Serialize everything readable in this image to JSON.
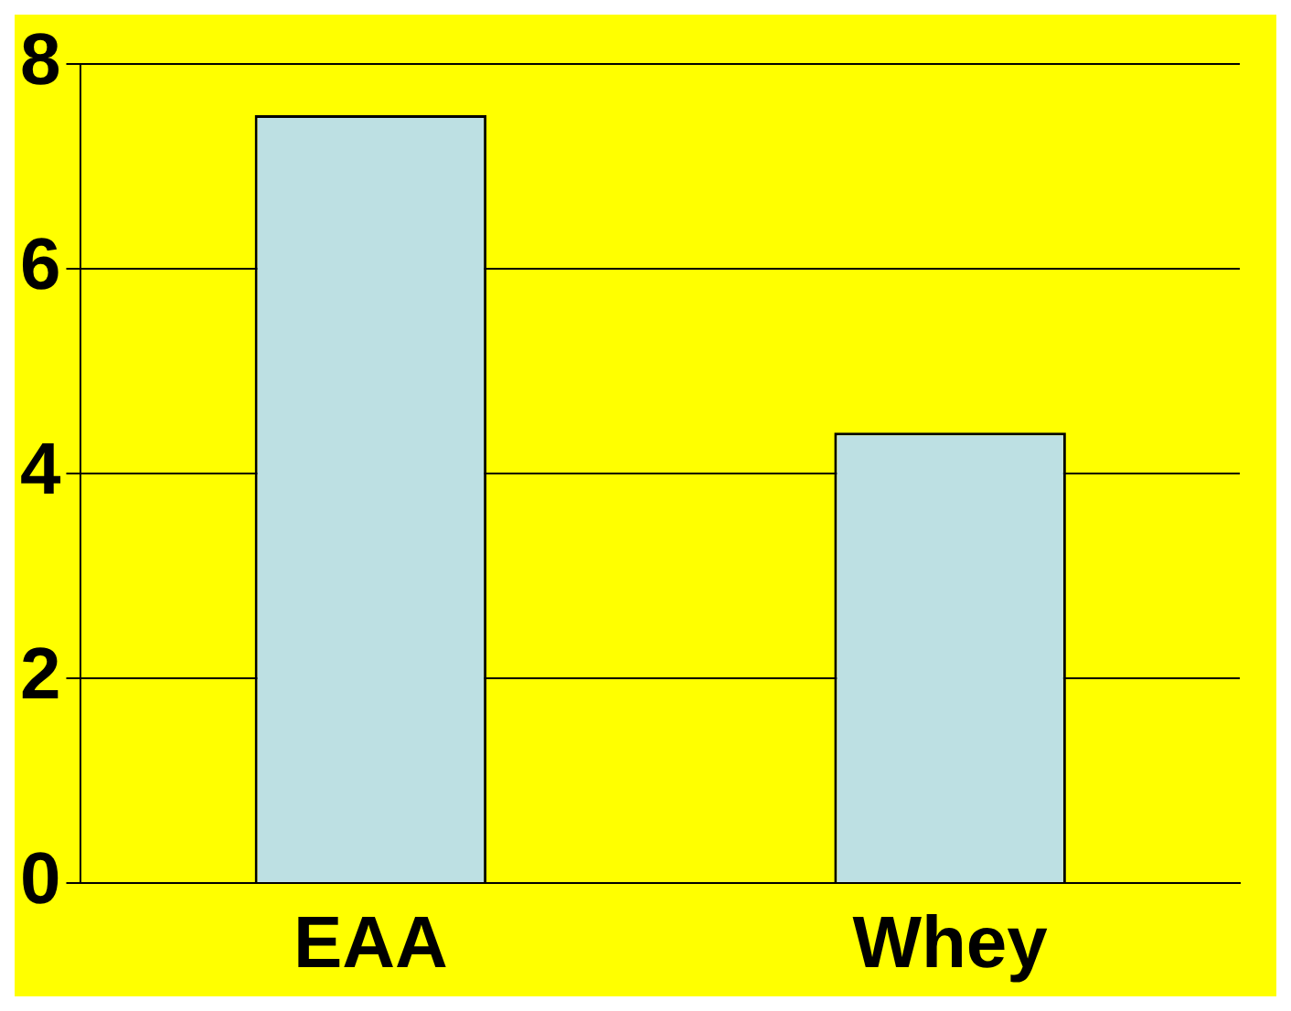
{
  "chart_data": {
    "type": "bar",
    "categories": [
      "EAA",
      "Whey"
    ],
    "values": [
      7.5,
      4.4
    ],
    "color": "#bde0e3",
    "ylim": [
      0,
      8
    ],
    "yticks": [
      0,
      2,
      4,
      6,
      8
    ],
    "grid": "y",
    "legend": false
  }
}
